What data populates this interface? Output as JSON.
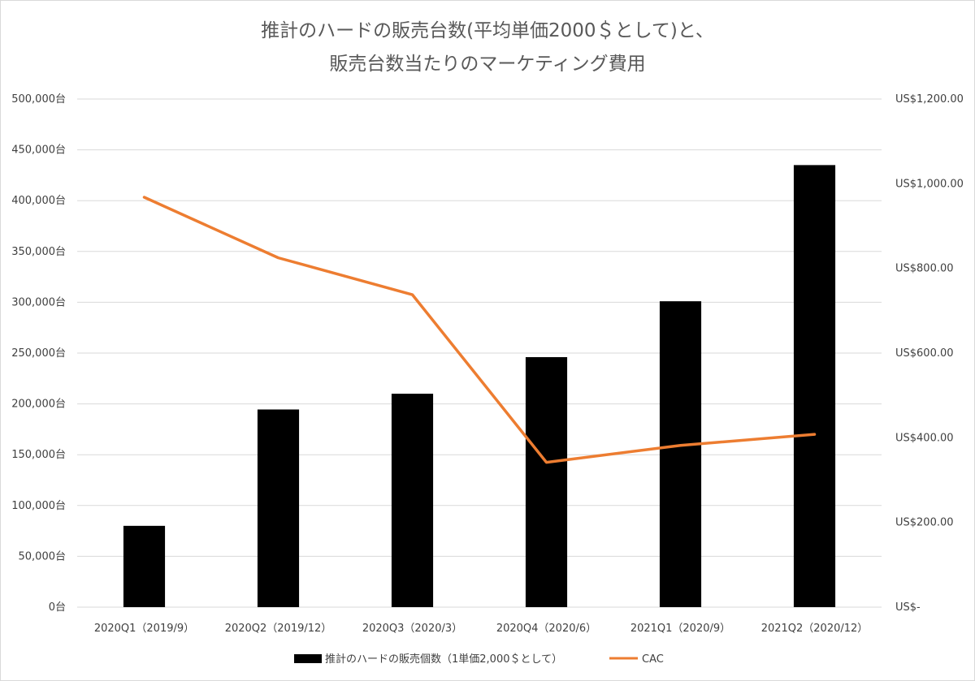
{
  "chart_data": {
    "type": "bar",
    "title_lines": [
      "推計のハードの販売台数(平均単価2000＄として)と、",
      "販売台数当たりのマーケティング費用"
    ],
    "categories": [
      "2020Q1（2019/9）",
      "2020Q2（2019/12）",
      "2020Q3（2020/3）",
      "2020Q4（2020/6）",
      "2021Q1（2020/9）",
      "2021Q2（2020/12）"
    ],
    "series": [
      {
        "name": "推計のハードの販売個数（1単価2,000＄として）",
        "type": "bar",
        "axis": "left",
        "color": "#000000",
        "values": [
          80000,
          194500,
          210000,
          246000,
          301000,
          435000
        ]
      },
      {
        "name": "CAC",
        "type": "line",
        "axis": "right",
        "color": "#ED7D31",
        "values": [
          968,
          825,
          738,
          342,
          382,
          408
        ]
      }
    ],
    "y_left": {
      "min": 0,
      "max": 500000,
      "ticks": [
        0,
        50000,
        100000,
        150000,
        200000,
        250000,
        300000,
        350000,
        400000,
        450000,
        500000
      ],
      "tick_labels": [
        "0台",
        "50,000台",
        "100,000台",
        "150,000台",
        "200,000台",
        "250,000台",
        "300,000台",
        "350,000台",
        "400,000台",
        "450,000台",
        "500,000台"
      ]
    },
    "y_right": {
      "min": 0,
      "max": 1200,
      "ticks": [
        0,
        200,
        400,
        600,
        800,
        1000,
        1200
      ],
      "tick_labels": [
        "US$-",
        "US$200.00",
        "US$400.00",
        "US$600.00",
        "US$800.00",
        "US$1,000.00",
        "US$1,200.00"
      ]
    },
    "grid": true,
    "legend_position": "bottom"
  }
}
